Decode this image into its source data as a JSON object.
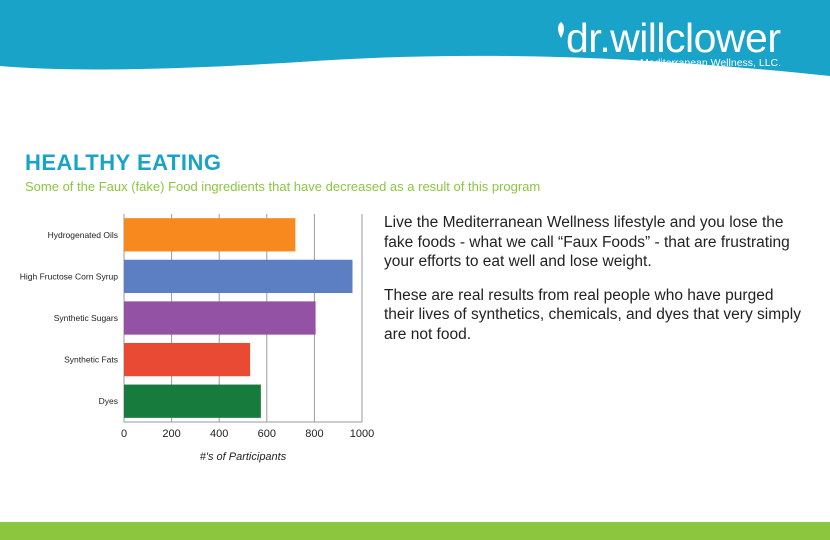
{
  "brand": {
    "name": "dr.willclower",
    "tagline": "Mediterranean Wellness, LLC.",
    "colors": {
      "header": "#1aa3c8",
      "accent": "#8cc63f",
      "title": "#1aa3c8"
    }
  },
  "page": {
    "title": "HEALTHY EATING",
    "subtitle": "Some of the Faux (fake) Food ingredients that have decreased as a result of this program"
  },
  "chart_data": {
    "type": "bar",
    "orientation": "horizontal",
    "categories": [
      "Hydrogenated Oils",
      "High Fructose Corn Syrup",
      "Synthetic Sugars",
      "Synthetic Fats",
      "Dyes"
    ],
    "values": [
      720,
      960,
      805,
      530,
      575
    ],
    "colors": [
      "#f7891f",
      "#5b7fc2",
      "#9452a5",
      "#e84a33",
      "#167b3d"
    ],
    "title": "",
    "xlabel": "#'s of Participants",
    "ylabel": "",
    "xlim": [
      0,
      1000
    ],
    "xticks": [
      0,
      200,
      400,
      600,
      800,
      1000
    ],
    "grid": true,
    "legend": "none"
  },
  "body": {
    "paragraph_1": "Live the Mediterranean Wellness lifestyle and you lose the fake foods - what we call “Faux Foods” - that are frustrating your efforts to eat well and lose weight.",
    "paragraph_2": "These are real results from real people who have purged their lives of synthetics, chemicals, and dyes that very simply are not food."
  }
}
